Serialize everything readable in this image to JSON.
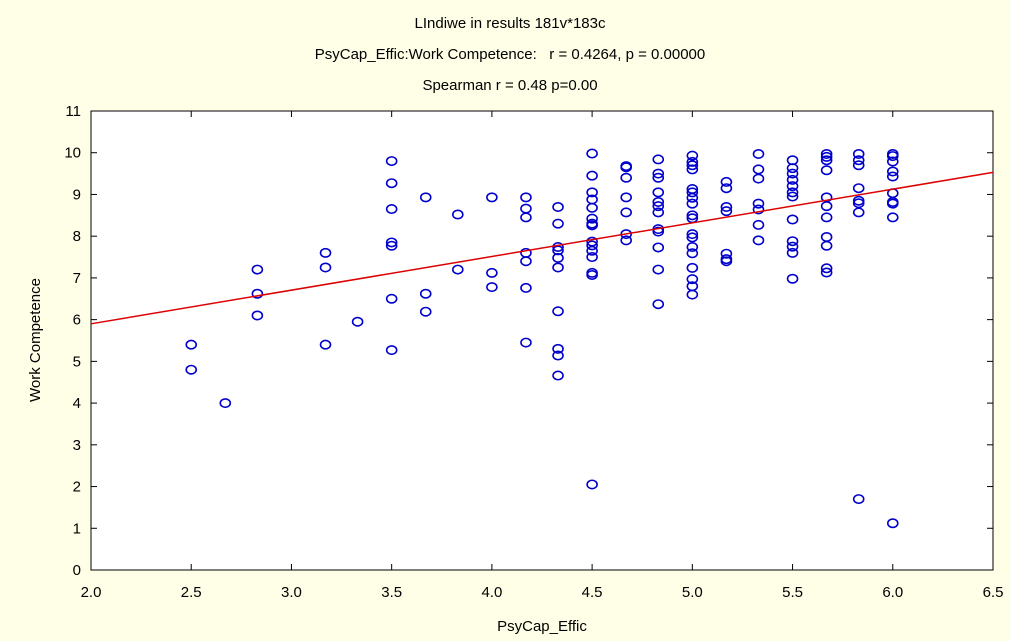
{
  "chart_data": {
    "type": "scatter",
    "title_lines": [
      "LIndiwe in results 181v*183c",
      "PsyCap_Effic:Work Competence:   r = 0.4264, p = 0.00000",
      "Spearman r = 0.48 p=0.00"
    ],
    "xlabel": "PsyCap_Effic",
    "ylabel": "Work Competence",
    "xlim": [
      2.0,
      6.5
    ],
    "ylim": [
      0,
      11
    ],
    "x_ticks": [
      "2.0",
      "2.5",
      "3.0",
      "3.5",
      "4.0",
      "4.5",
      "5.0",
      "5.5",
      "6.0",
      "6.5"
    ],
    "y_ticks": [
      "0",
      "1",
      "2",
      "3",
      "4",
      "5",
      "6",
      "7",
      "8",
      "9",
      "10",
      "11"
    ],
    "grid": false,
    "legend": "none",
    "colors": {
      "background": "#FFFFE8",
      "plot_area": "#FFFFFF",
      "marker": "#0000CC",
      "fit_line": "#DD0000",
      "axis": "#000000"
    },
    "fit_line": {
      "x": [
        2.0,
        6.5
      ],
      "y": [
        5.9,
        9.53
      ]
    },
    "points": [
      [
        2.5,
        5.4
      ],
      [
        2.5,
        4.8
      ],
      [
        2.67,
        4.0
      ],
      [
        2.83,
        7.2
      ],
      [
        2.83,
        6.62
      ],
      [
        2.83,
        6.1
      ],
      [
        3.17,
        7.6
      ],
      [
        3.17,
        7.25
      ],
      [
        3.17,
        5.4
      ],
      [
        3.33,
        5.95
      ],
      [
        3.5,
        9.8
      ],
      [
        3.5,
        9.27
      ],
      [
        3.5,
        8.65
      ],
      [
        3.5,
        7.85
      ],
      [
        3.5,
        7.77
      ],
      [
        3.5,
        6.5
      ],
      [
        3.5,
        5.27
      ],
      [
        3.67,
        8.93
      ],
      [
        3.67,
        6.62
      ],
      [
        3.67,
        6.19
      ],
      [
        3.83,
        8.52
      ],
      [
        3.83,
        7.2
      ],
      [
        4.0,
        8.93
      ],
      [
        4.0,
        7.12
      ],
      [
        4.0,
        6.78
      ],
      [
        4.17,
        8.93
      ],
      [
        4.17,
        8.66
      ],
      [
        4.17,
        8.45
      ],
      [
        4.17,
        7.6
      ],
      [
        4.17,
        7.4
      ],
      [
        4.17,
        6.76
      ],
      [
        4.17,
        5.45
      ],
      [
        4.33,
        8.7
      ],
      [
        4.33,
        8.3
      ],
      [
        4.33,
        7.74
      ],
      [
        4.33,
        7.66
      ],
      [
        4.33,
        7.48
      ],
      [
        4.33,
        7.25
      ],
      [
        4.33,
        6.2
      ],
      [
        4.33,
        5.3
      ],
      [
        4.33,
        5.14
      ],
      [
        4.33,
        4.66
      ],
      [
        4.5,
        9.98
      ],
      [
        4.5,
        9.45
      ],
      [
        4.5,
        9.05
      ],
      [
        4.5,
        8.88
      ],
      [
        4.5,
        8.68
      ],
      [
        4.5,
        8.42
      ],
      [
        4.5,
        8.3
      ],
      [
        4.5,
        8.26
      ],
      [
        4.5,
        7.87
      ],
      [
        4.5,
        7.78
      ],
      [
        4.5,
        7.65
      ],
      [
        4.5,
        7.5
      ],
      [
        4.5,
        7.12
      ],
      [
        4.5,
        7.07
      ],
      [
        4.5,
        2.05
      ],
      [
        4.67,
        9.68
      ],
      [
        4.67,
        9.65
      ],
      [
        4.67,
        9.4
      ],
      [
        4.67,
        8.93
      ],
      [
        4.67,
        8.57
      ],
      [
        4.67,
        8.05
      ],
      [
        4.67,
        7.9
      ],
      [
        4.83,
        9.84
      ],
      [
        4.83,
        9.5
      ],
      [
        4.83,
        9.4
      ],
      [
        4.83,
        9.05
      ],
      [
        4.83,
        8.82
      ],
      [
        4.83,
        8.72
      ],
      [
        4.83,
        8.57
      ],
      [
        4.83,
        8.17
      ],
      [
        4.83,
        8.11
      ],
      [
        4.83,
        7.73
      ],
      [
        4.83,
        7.2
      ],
      [
        4.83,
        6.37
      ],
      [
        5.0,
        9.93
      ],
      [
        5.0,
        9.78
      ],
      [
        5.0,
        9.7
      ],
      [
        5.0,
        9.6
      ],
      [
        5.0,
        9.13
      ],
      [
        5.0,
        9.05
      ],
      [
        5.0,
        8.92
      ],
      [
        5.0,
        8.78
      ],
      [
        5.0,
        8.5
      ],
      [
        5.0,
        8.43
      ],
      [
        5.0,
        8.05
      ],
      [
        5.0,
        7.97
      ],
      [
        5.0,
        7.74
      ],
      [
        5.0,
        7.59
      ],
      [
        5.0,
        7.24
      ],
      [
        5.0,
        6.97
      ],
      [
        5.0,
        6.8
      ],
      [
        5.0,
        6.6
      ],
      [
        5.17,
        9.3
      ],
      [
        5.17,
        9.15
      ],
      [
        5.17,
        8.7
      ],
      [
        5.17,
        8.6
      ],
      [
        5.17,
        7.58
      ],
      [
        5.17,
        7.45
      ],
      [
        5.17,
        7.4
      ],
      [
        5.33,
        9.97
      ],
      [
        5.33,
        9.6
      ],
      [
        5.33,
        9.38
      ],
      [
        5.33,
        8.78
      ],
      [
        5.33,
        8.64
      ],
      [
        5.33,
        8.27
      ],
      [
        5.33,
        7.9
      ],
      [
        5.5,
        9.82
      ],
      [
        5.5,
        9.63
      ],
      [
        5.5,
        9.5
      ],
      [
        5.5,
        9.35
      ],
      [
        5.5,
        9.2
      ],
      [
        5.5,
        9.05
      ],
      [
        5.5,
        8.95
      ],
      [
        5.5,
        8.4
      ],
      [
        5.5,
        7.88
      ],
      [
        5.5,
        7.75
      ],
      [
        5.5,
        7.6
      ],
      [
        5.5,
        6.98
      ],
      [
        5.67,
        9.97
      ],
      [
        5.67,
        9.9
      ],
      [
        5.67,
        9.82
      ],
      [
        5.67,
        9.58
      ],
      [
        5.67,
        8.93
      ],
      [
        5.67,
        8.72
      ],
      [
        5.67,
        8.45
      ],
      [
        5.67,
        7.98
      ],
      [
        5.67,
        7.77
      ],
      [
        5.67,
        7.23
      ],
      [
        5.67,
        7.13
      ],
      [
        5.83,
        9.97
      ],
      [
        5.83,
        9.82
      ],
      [
        5.83,
        9.7
      ],
      [
        5.83,
        9.15
      ],
      [
        5.83,
        8.85
      ],
      [
        5.83,
        8.79
      ],
      [
        5.83,
        8.57
      ],
      [
        5.83,
        1.7
      ],
      [
        6.0,
        9.97
      ],
      [
        6.0,
        9.92
      ],
      [
        6.0,
        9.79
      ],
      [
        6.0,
        9.55
      ],
      [
        6.0,
        9.43
      ],
      [
        6.0,
        9.03
      ],
      [
        6.0,
        8.82
      ],
      [
        6.0,
        8.78
      ],
      [
        6.0,
        8.45
      ],
      [
        6.0,
        1.12
      ]
    ]
  }
}
